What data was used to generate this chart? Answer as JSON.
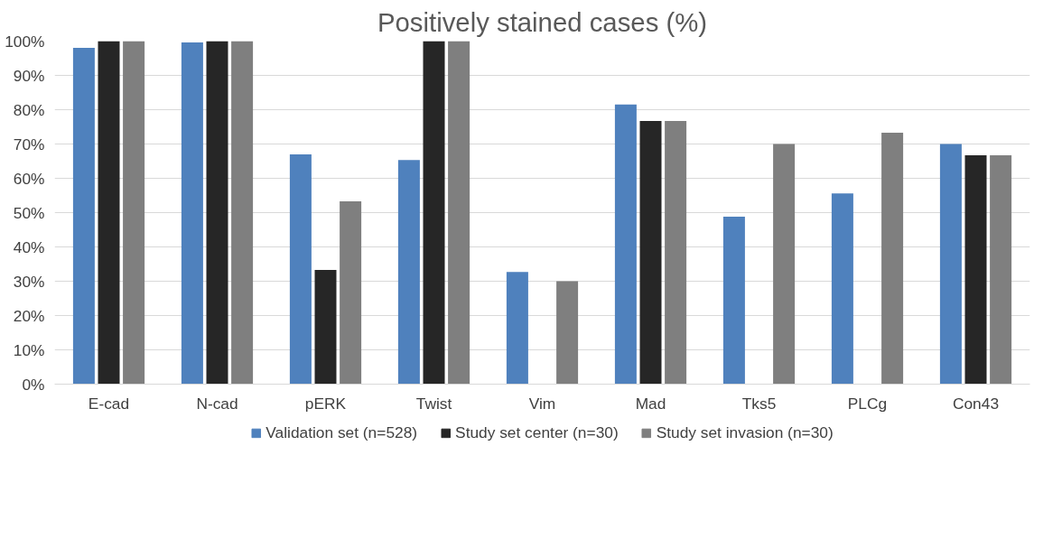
{
  "chart_data": {
    "type": "bar",
    "title": "Positively stained cases (%)",
    "categories": [
      "E-cad",
      "N-cad",
      "pERK",
      "Twist",
      "Vim",
      "Mad",
      "Tks5",
      "PLCg",
      "Con43"
    ],
    "series": [
      {
        "name": "Validation set (n=528)",
        "color": "#4f81bd",
        "values": [
          98,
          99.6,
          67,
          65.3,
          32.7,
          81.5,
          48.8,
          55.6,
          70
        ]
      },
      {
        "name": "Study set center (n=30)",
        "color": "#262626",
        "values": [
          100,
          100,
          33.3,
          100,
          0,
          76.7,
          0,
          0,
          66.7
        ]
      },
      {
        "name": "Study set invasion (n=30)",
        "color": "#7f7f7f",
        "values": [
          100,
          100,
          53.3,
          100,
          30,
          76.7,
          70,
          73.3,
          66.7
        ]
      }
    ],
    "ylim": [
      0,
      100
    ],
    "yticks": [
      {
        "value": 0,
        "label": "0%"
      },
      {
        "value": 10,
        "label": "10%"
      },
      {
        "value": 20,
        "label": "20%"
      },
      {
        "value": 30,
        "label": "30%"
      },
      {
        "value": 40,
        "label": "40%"
      },
      {
        "value": 50,
        "label": "50%"
      },
      {
        "value": 60,
        "label": "60%"
      },
      {
        "value": 70,
        "label": "70%"
      },
      {
        "value": 80,
        "label": "80%"
      },
      {
        "value": 90,
        "label": "90%"
      },
      {
        "value": 100,
        "label": "100%"
      }
    ],
    "grid": "y",
    "legend": "bottom"
  }
}
